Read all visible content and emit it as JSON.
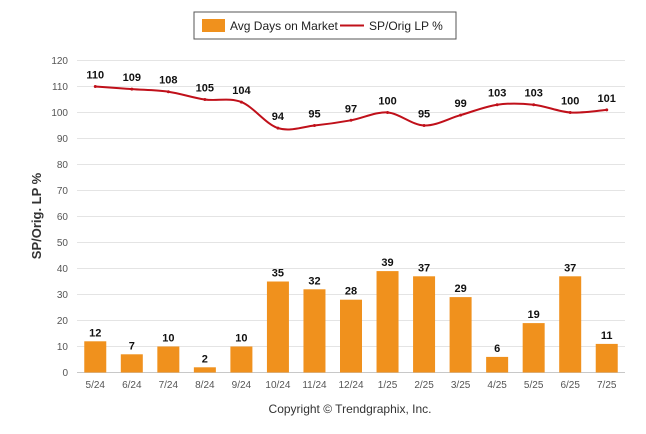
{
  "chart_data": {
    "type": "bar",
    "categories": [
      "5/24",
      "6/24",
      "7/24",
      "8/24",
      "9/24",
      "10/24",
      "11/24",
      "12/24",
      "1/25",
      "2/25",
      "3/25",
      "4/25",
      "5/25",
      "6/25",
      "7/25"
    ],
    "series": [
      {
        "name": "Avg Days on Market",
        "type": "bar",
        "color": "#f0911d",
        "values": [
          12,
          7,
          10,
          2,
          10,
          35,
          32,
          28,
          39,
          37,
          29,
          6,
          19,
          37,
          11
        ]
      },
      {
        "name": "SP/Orig LP %",
        "type": "line",
        "color": "#c0101a",
        "values": [
          110,
          109,
          108,
          105,
          104,
          94,
          95,
          97,
          100,
          95,
          99,
          103,
          103,
          100,
          101
        ]
      }
    ],
    "ylabel": "SP/Orig. LP %",
    "ylim": [
      0,
      120
    ],
    "yticks": [
      0,
      10,
      20,
      30,
      40,
      50,
      60,
      70,
      80,
      90,
      100,
      110,
      120
    ],
    "grid": true,
    "legend_position": "top-center"
  },
  "footer": {
    "copyright": "Copyright © Trendgraphix, Inc."
  }
}
